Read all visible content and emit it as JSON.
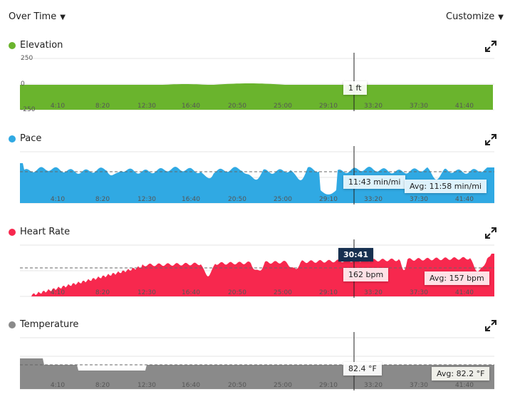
{
  "header": {
    "view_select": {
      "label": "Over Time",
      "icon": "caret-down-icon"
    },
    "customize": {
      "label": "Customize",
      "icon": "caret-down-icon"
    }
  },
  "x_ticks": [
    "4:10",
    "8:20",
    "12:30",
    "16:40",
    "20:50",
    "25:00",
    "29:10",
    "33:20",
    "37:30",
    "41:40"
  ],
  "cursor_time": "30:41",
  "panels": [
    {
      "key": "elevation",
      "title": "Elevation",
      "color": "#6ab42d",
      "y_ticks": [
        "250",
        "0",
        "-250"
      ],
      "tooltip": "1 ft",
      "avg_label": "",
      "expand_icon": "expand-icon"
    },
    {
      "key": "pace",
      "title": "Pace",
      "color": "#30a9e3",
      "y_ticks": [],
      "tooltip": "11:43 min/mi",
      "avg_label": "Avg: 11:58 min/mi",
      "expand_icon": "expand-icon"
    },
    {
      "key": "heart",
      "title": "Heart Rate",
      "color": "#f7284e",
      "y_ticks": [],
      "tooltip": "162 bpm",
      "avg_label": "Avg: 157 bpm",
      "expand_icon": "expand-icon"
    },
    {
      "key": "temp",
      "title": "Temperature",
      "color": "#8a8a8a",
      "y_ticks": [],
      "tooltip": "82.4 °F",
      "avg_label": "Avg: 82.2 °F",
      "expand_icon": "expand-icon"
    }
  ]
}
